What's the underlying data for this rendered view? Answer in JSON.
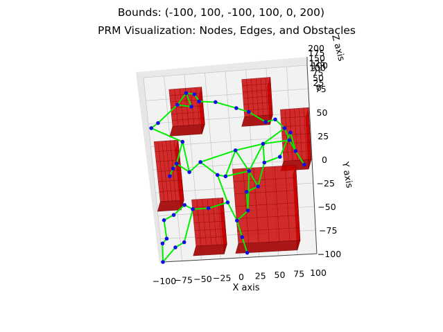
{
  "chart_data": {
    "type": "scatter",
    "chart_kind": "3d-scatter",
    "title": "Bounds: (-100, 100, -100, 100, 0, 200)",
    "subtitle": "PRM Visualization: Nodes, Edges, and Obstacles",
    "xlabel": "X axis",
    "ylabel": "Y axis",
    "zlabel": "Z axis",
    "xlim": [
      -100,
      100
    ],
    "ylim": [
      -100,
      100
    ],
    "zlim": [
      0,
      200
    ],
    "x_ticks": [
      "−100",
      "−75",
      "−50",
      "−25",
      "0",
      "25",
      "50",
      "75",
      "100"
    ],
    "y_ticks": [
      "−100",
      "−75",
      "−50",
      "−25",
      "0",
      "25",
      "50",
      "75",
      "100"
    ],
    "z_ticks": [
      "0",
      "25",
      "50",
      "75",
      "100",
      "125",
      "150",
      "175",
      "200"
    ],
    "grid": true,
    "colors": {
      "nodes": "#1010e0",
      "edges": "#00ee00",
      "obstacle_face": "#cc0000",
      "obstacle_edge": "#7a0000",
      "pane": "#f2f2f2",
      "grid": "#c8c8c8"
    },
    "obstacles": [
      {
        "x": [
          -75,
          -35
        ],
        "y": [
          35,
          75
        ]
      },
      {
        "x": [
          15,
          50
        ],
        "y": [
          40,
          80
        ]
      },
      {
        "x": [
          60,
          95
        ],
        "y": [
          -10,
          45
        ]
      },
      {
        "x": [
          -100,
          -70
        ],
        "y": [
          -45,
          20
        ]
      },
      {
        "x": [
          -60,
          -20
        ],
        "y": [
          -95,
          -45
        ]
      },
      {
        "x": [
          -5,
          75
        ],
        "y": [
          -95,
          -15
        ]
      }
    ],
    "nodes": [
      {
        "x": -97,
        "y": 45
      },
      {
        "x": -88,
        "y": 50
      },
      {
        "x": -62,
        "y": 68
      },
      {
        "x": -50,
        "y": 80
      },
      {
        "x": -40,
        "y": 78
      },
      {
        "x": -35,
        "y": 70
      },
      {
        "x": -45,
        "y": 65
      },
      {
        "x": -15,
        "y": 68
      },
      {
        "x": 10,
        "y": 60
      },
      {
        "x": 25,
        "y": 55
      },
      {
        "x": 45,
        "y": 43
      },
      {
        "x": 57,
        "y": 45
      },
      {
        "x": 68,
        "y": 35
      },
      {
        "x": 73,
        "y": 22
      },
      {
        "x": 80,
        "y": 10
      },
      {
        "x": 90,
        "y": -5
      },
      {
        "x": 40,
        "y": 20
      },
      {
        "x": 5,
        "y": 15
      },
      {
        "x": -60,
        "y": 28
      },
      {
        "x": -70,
        "y": 5
      },
      {
        "x": -75,
        "y": 0
      },
      {
        "x": -80,
        "y": -8
      },
      {
        "x": -55,
        "y": -5
      },
      {
        "x": -40,
        "y": 5
      },
      {
        "x": -20,
        "y": -10
      },
      {
        "x": -10,
        "y": -12
      },
      {
        "x": 20,
        "y": -8
      },
      {
        "x": 30,
        "y": -25
      },
      {
        "x": 15,
        "y": -30
      },
      {
        "x": -10,
        "y": -40
      },
      {
        "x": -35,
        "y": -45
      },
      {
        "x": -55,
        "y": -45
      },
      {
        "x": -65,
        "y": -40
      },
      {
        "x": -80,
        "y": -50
      },
      {
        "x": -93,
        "y": -55
      },
      {
        "x": -92,
        "y": -75
      },
      {
        "x": -98,
        "y": -80
      },
      {
        "x": -100,
        "y": -100
      },
      {
        "x": -82,
        "y": -85
      },
      {
        "x": -70,
        "y": -80
      },
      {
        "x": 0,
        "y": -60
      },
      {
        "x": 5,
        "y": -78
      },
      {
        "x": 10,
        "y": -95
      },
      {
        "x": 15,
        "y": -50
      },
      {
        "x": 40,
        "y": 0
      },
      {
        "x": 60,
        "y": 5
      },
      {
        "x": 75,
        "y": 30
      }
    ],
    "edges": [
      [
        0,
        1
      ],
      [
        1,
        2
      ],
      [
        2,
        3
      ],
      [
        3,
        4
      ],
      [
        4,
        5
      ],
      [
        3,
        6
      ],
      [
        5,
        7
      ],
      [
        6,
        2
      ],
      [
        7,
        8
      ],
      [
        8,
        9
      ],
      [
        9,
        10
      ],
      [
        10,
        11
      ],
      [
        11,
        12
      ],
      [
        12,
        13
      ],
      [
        13,
        14
      ],
      [
        14,
        15
      ],
      [
        12,
        16
      ],
      [
        16,
        17
      ],
      [
        17,
        23
      ],
      [
        16,
        44
      ],
      [
        44,
        45
      ],
      [
        45,
        46
      ],
      [
        46,
        14
      ],
      [
        18,
        19
      ],
      [
        19,
        20
      ],
      [
        20,
        21
      ],
      [
        18,
        22
      ],
      [
        22,
        23
      ],
      [
        23,
        24
      ],
      [
        24,
        25
      ],
      [
        25,
        26
      ],
      [
        26,
        27
      ],
      [
        25,
        17
      ],
      [
        17,
        26
      ],
      [
        26,
        16
      ],
      [
        24,
        29
      ],
      [
        29,
        30
      ],
      [
        30,
        31
      ],
      [
        31,
        32
      ],
      [
        32,
        33
      ],
      [
        33,
        34
      ],
      [
        34,
        35
      ],
      [
        35,
        36
      ],
      [
        36,
        37
      ],
      [
        37,
        38
      ],
      [
        38,
        39
      ],
      [
        39,
        31
      ],
      [
        29,
        40
      ],
      [
        40,
        41
      ],
      [
        41,
        42
      ],
      [
        40,
        43
      ],
      [
        43,
        28
      ],
      [
        28,
        27
      ],
      [
        27,
        44
      ],
      [
        22,
        19
      ],
      [
        0,
        18
      ],
      [
        16,
        13
      ],
      [
        26,
        43
      ]
    ]
  }
}
